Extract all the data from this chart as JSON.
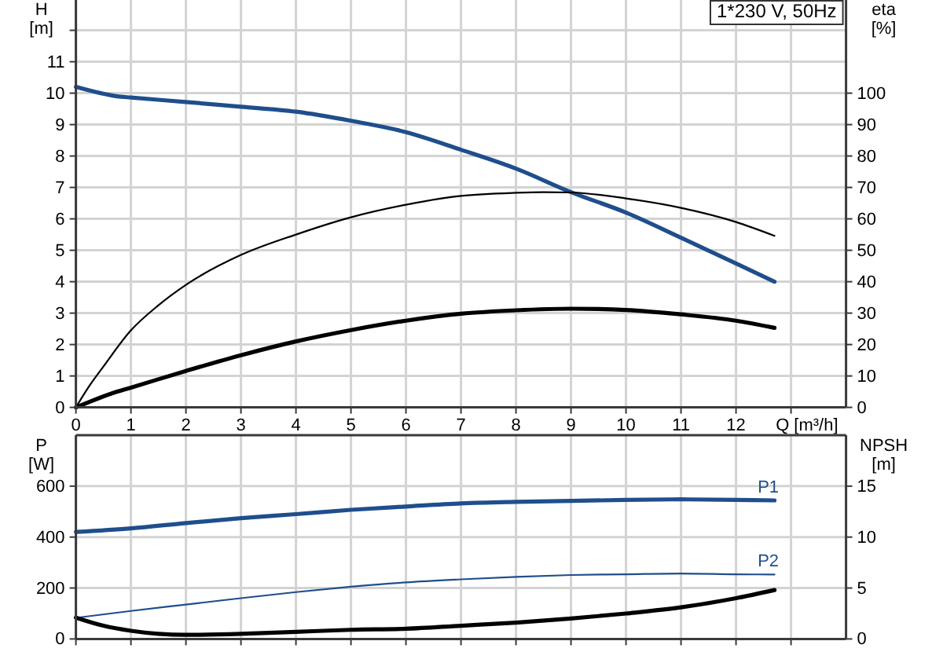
{
  "chart_data": [
    {
      "type": "line",
      "title": "1*230 V, 50Hz",
      "xlabel": "Q [m³/h]",
      "ylabel": "H [m]",
      "y2label": "eta [%]",
      "xlim": [
        0,
        14
      ],
      "xticks": [
        0,
        1,
        2,
        3,
        4,
        5,
        6,
        7,
        8,
        9,
        10,
        11,
        12,
        {
          "value": 13,
          "label": null
        }
      ],
      "ylim": [
        0,
        13
      ],
      "yticks": [
        0,
        1,
        2,
        3,
        4,
        5,
        6,
        7,
        8,
        9,
        10,
        11,
        {
          "value": 12,
          "label": null
        }
      ],
      "y2lim": [
        0,
        130
      ],
      "y2ticks": [
        0,
        10,
        20,
        30,
        40,
        50,
        60,
        70,
        80,
        90,
        100
      ],
      "grid": true,
      "series": [
        {
          "color": "#1f4e8c",
          "x": [
            0,
            0.75,
            1,
            2,
            3,
            4,
            5,
            6,
            7,
            8,
            9,
            10,
            11,
            12,
            12.7
          ],
          "values": [
            10.2,
            9.9,
            9.86,
            9.72,
            9.57,
            9.41,
            9.12,
            8.76,
            8.2,
            7.6,
            6.85,
            6.2,
            5.4,
            4.58,
            4.0
          ]
        },
        {
          "color": "#000000",
          "axis": "y2",
          "x": [
            0,
            0.25,
            0.5,
            1,
            1.5,
            2,
            3,
            4,
            5,
            6,
            7,
            8,
            8.5,
            9,
            10,
            11,
            12,
            12.7
          ],
          "values": [
            0,
            7,
            13,
            24.5,
            32.5,
            39,
            48.5,
            55,
            60.5,
            64.5,
            67.3,
            68.3,
            68.5,
            68.4,
            66.5,
            63.5,
            59,
            54.6
          ]
        },
        {
          "color": "#000000",
          "axis": "y2",
          "x": [
            0,
            0.75,
            1,
            2,
            3,
            4,
            5,
            6,
            7,
            8,
            9,
            10,
            11,
            12,
            12.7
          ],
          "values": [
            0,
            5,
            6.3,
            11.6,
            16.6,
            21,
            24.6,
            27.6,
            29.8,
            30.9,
            31.4,
            31,
            29.6,
            27.6,
            25.3
          ]
        }
      ]
    },
    {
      "type": "line",
      "ylabel": "P [W]",
      "y2label": "NPSH [m]",
      "xlim": [
        0,
        14
      ],
      "xticks": [
        0,
        1,
        2,
        3,
        4,
        5,
        6,
        7,
        8,
        9,
        10,
        11,
        12,
        13
      ],
      "ylim": [
        0,
        800
      ],
      "yticks": [
        0,
        200,
        400,
        600
      ],
      "y2lim": [
        0,
        20
      ],
      "y2ticks": [
        0,
        5,
        10,
        15
      ],
      "grid": true,
      "tick_labels": "y",
      "series": [
        {
          "name": "P1",
          "color": "#1f4e8c",
          "x": [
            0,
            1,
            2,
            3,
            4,
            5,
            6,
            7,
            8,
            9,
            10,
            11,
            12,
            12.7
          ],
          "values": [
            420,
            434,
            455,
            474,
            490,
            507,
            520,
            532,
            538,
            542,
            546,
            548,
            546,
            544
          ]
        },
        {
          "name": "P2",
          "color": "#1f4e8c",
          "x": [
            0,
            1,
            2,
            3,
            4,
            5,
            6,
            7,
            8,
            9,
            10,
            11,
            12,
            12.7
          ],
          "values": [
            83,
            110,
            135,
            160,
            184,
            205,
            222,
            234,
            244,
            251,
            254,
            257,
            254,
            253
          ]
        },
        {
          "color": "#000000",
          "axis": "y2",
          "x": [
            0,
            0.5,
            1,
            2,
            3,
            4,
            5,
            6,
            7,
            8,
            9,
            10,
            11,
            12,
            12.7
          ],
          "values": [
            2.1,
            1.3,
            0.8,
            0.4,
            0.5,
            0.7,
            0.9,
            1.0,
            1.3,
            1.6,
            2.0,
            2.5,
            3.1,
            4.0,
            4.8
          ]
        }
      ]
    }
  ]
}
